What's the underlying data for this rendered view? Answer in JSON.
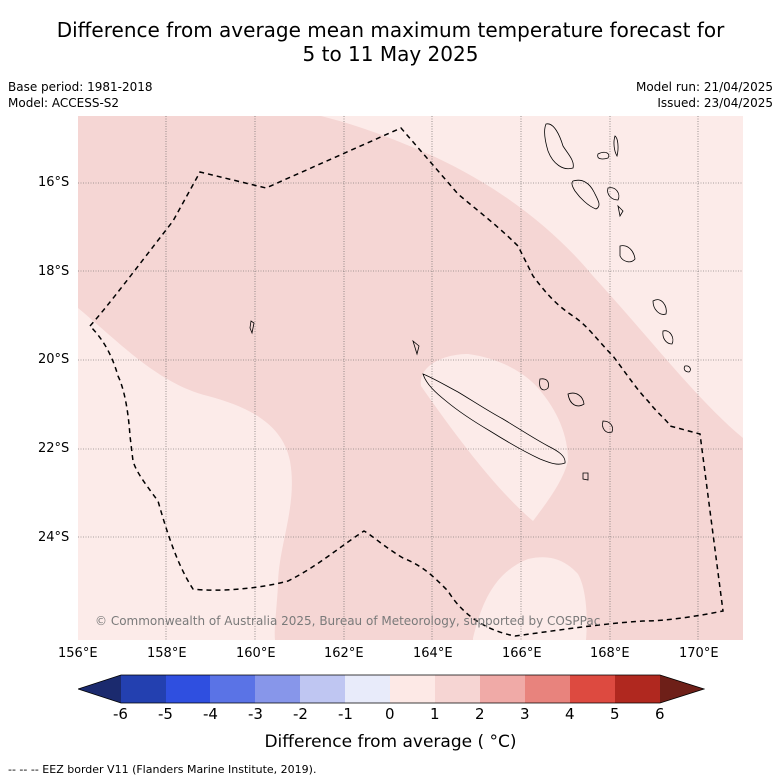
{
  "title_line1": "Difference from average mean maximum temperature forecast for",
  "title_line2": "5 to 11 May 2025",
  "base_period": "Base period: 1981-2018",
  "model": "Model: ACCESS-S2",
  "model_run": "Model run: 21/04/2025",
  "issued": "Issued: 23/04/2025",
  "copyright": "© Commonwealth of Australia 2025, Bureau of Meteorology, supported by COSPPac",
  "lat_labels": [
    "16°S",
    "18°S",
    "20°S",
    "22°S",
    "24°S"
  ],
  "lon_labels": [
    "156°E",
    "158°E",
    "160°E",
    "162°E",
    "164°E",
    "166°E",
    "168°E",
    "170°E"
  ],
  "colorbar": {
    "title": "Difference from average ( °C)",
    "ticks": [
      "-6",
      "-5",
      "-4",
      "-3",
      "-2",
      "-1",
      "0",
      "1",
      "2",
      "3",
      "4",
      "5",
      "6"
    ],
    "colors": [
      "#1b2a6e",
      "#2340b0",
      "#2f4fe0",
      "#5a73e6",
      "#8796ea",
      "#bfc6f2",
      "#e8ebfa",
      "#fde9e6",
      "#f6d5d3",
      "#f0aaa7",
      "#e8837d",
      "#dd4a40",
      "#b0281f",
      "#6e1f18"
    ]
  },
  "footer": "-- -- -- EEZ border V11 (Flanders Marine Institute, 2019).",
  "map_colors": {
    "light_anomaly": "#fcebe9",
    "mid_anomaly": "#f5d6d4"
  }
}
